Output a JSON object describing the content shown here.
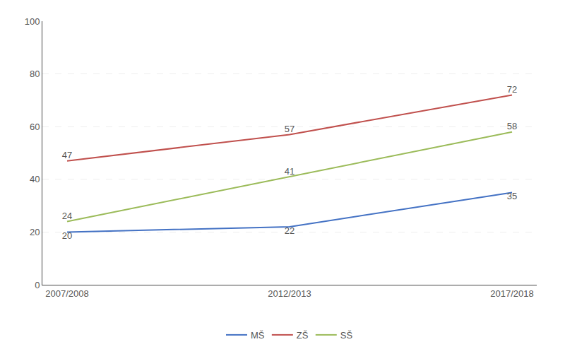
{
  "chart_data": {
    "type": "line",
    "categories": [
      "2007/2008",
      "2012/2013",
      "2017/2018"
    ],
    "series": [
      {
        "name": "MŠ",
        "color": "#4472c4",
        "values": [
          20,
          22,
          35
        ]
      },
      {
        "name": "ZŠ",
        "color": "#c0504d",
        "values": [
          47,
          57,
          72
        ]
      },
      {
        "name": "SŠ",
        "color": "#9bbb59",
        "values": [
          24,
          41,
          58
        ]
      }
    ],
    "ylim": [
      0,
      100
    ],
    "yticks": [
      0,
      20,
      40,
      60,
      80,
      100
    ],
    "grid": true,
    "legend": "bottom",
    "data_labels": true
  }
}
